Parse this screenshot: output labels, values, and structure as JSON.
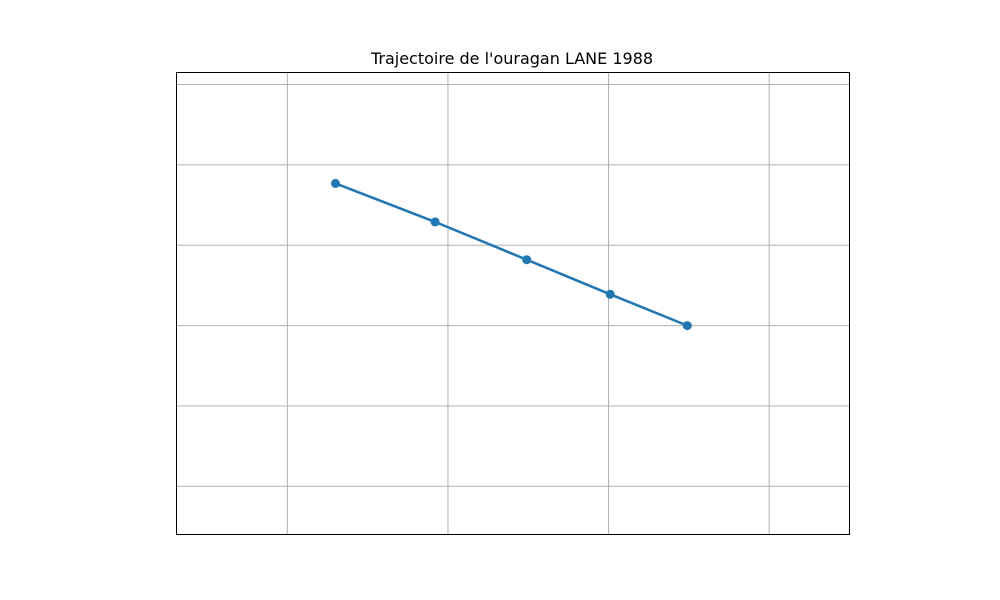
{
  "chart_data": {
    "type": "line",
    "title": "Trajectoire de l'ouragan LANE 1988",
    "xlabel": "",
    "ylabel": "",
    "xlim": [
      -0.69,
      3.5
    ],
    "ylim": [
      -0.6,
      5.15
    ],
    "x_gridlines": [
      0,
      1,
      2,
      3
    ],
    "y_gridlines": [
      0,
      1,
      2,
      3,
      4,
      5
    ],
    "grid": true,
    "x": [
      0.3,
      0.92,
      1.49,
      2.01,
      2.49
    ],
    "y": [
      3.77,
      3.29,
      2.82,
      2.39,
      2.0
    ],
    "series_color": "#1f77b4",
    "grid_color": "#b0b0b0",
    "marker": "circle"
  }
}
